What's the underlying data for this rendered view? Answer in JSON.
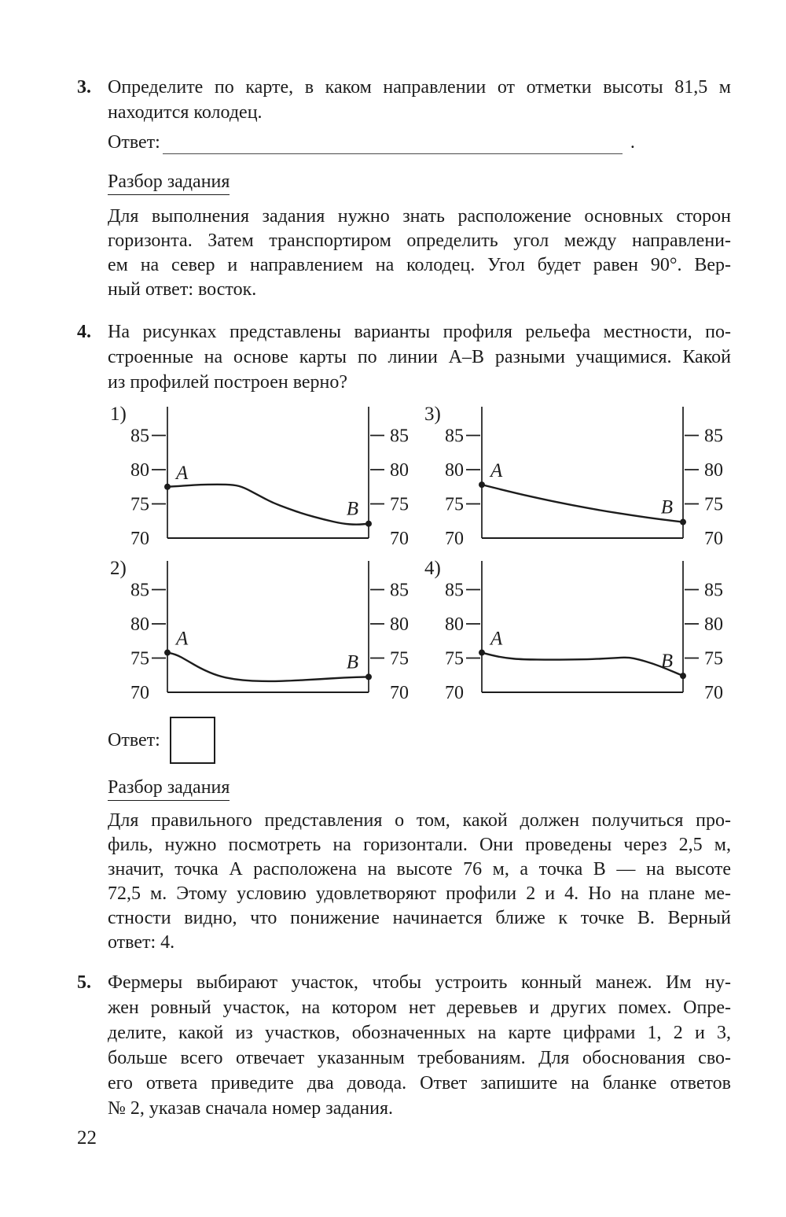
{
  "page": {
    "number": "22",
    "background": "#ffffff",
    "text_color": "#1c1c1c"
  },
  "task3": {
    "number": "3.",
    "lines": [
      "Определите по карте, в каком направлении от отметки высоты 81,5 м",
      "находится колодец."
    ],
    "answer": {
      "label": "Ответ:",
      "period": "."
    },
    "analysis": {
      "heading": "Разбор задания",
      "lines": [
        "Для выполнения задания нужно знать расположение основных сторон",
        "горизонта. Затем транспортиром определить угол между направлени-",
        "ем на север и направлением на колодец. Угол будет равен 90°. Вер-",
        "ный ответ: восток."
      ]
    }
  },
  "task4": {
    "number": "4.",
    "lines": [
      "На рисунках представлены варианты профиля рельефа местности, по-",
      "строенные на основе карты по линии А–В разными учащимися. Какой",
      "из профилей построен верно?"
    ],
    "answer": {
      "label": "Ответ:"
    },
    "analysis": {
      "heading": "Разбор задания",
      "lines": [
        "Для правильного представления о том, какой должен получиться про-",
        "филь, нужно посмотреть на горизонтали. Они проведены через 2,5 м,",
        "значит, точка А расположена на высоте 76 м, а точка В — на высоте",
        "72,5 м. Этому условию удовлетворяют профили 2 и 4. Но на плане ме-",
        "стности видно, что понижение начинается ближе к точке В. Верный",
        "ответ: 4."
      ]
    }
  },
  "task5": {
    "number": "5.",
    "lines": [
      "Фермеры выбирают участок, чтобы устроить конный манеж. Им ну-",
      "жен ровный участок, на котором нет деревьев и других помех. Опре-",
      "делите, какой из участков, обозначенных на карте цифрами 1, 2 и 3,",
      "больше всего отвечает указанным требованиям. Для обоснования сво-",
      "его ответа приведите два довода. Ответ запишите на бланке ответов",
      "№ 2, указав сначала номер задания."
    ]
  },
  "chart_data": [
    {
      "id": "profile-1",
      "label": "1)",
      "type": "line",
      "yticks": [
        85,
        80,
        75,
        70
      ],
      "ylim": [
        70,
        89.5
      ],
      "point_labels": [
        "А",
        "В"
      ],
      "endpoints": {
        "A": 77.5,
        "B": 72.1
      },
      "points": [
        [
          0,
          77.5
        ],
        [
          0.06,
          77.6
        ],
        [
          0.15,
          77.8
        ],
        [
          0.25,
          77.85
        ],
        [
          0.33,
          77.8
        ],
        [
          0.38,
          77.4
        ],
        [
          0.45,
          76.3
        ],
        [
          0.52,
          75.2
        ],
        [
          0.6,
          74.3
        ],
        [
          0.68,
          73.5
        ],
        [
          0.78,
          72.7
        ],
        [
          0.87,
          72.1
        ],
        [
          0.94,
          71.95
        ],
        [
          1,
          72.1
        ]
      ]
    },
    {
      "id": "profile-2",
      "label": "2)",
      "type": "line",
      "yticks": [
        85,
        80,
        75,
        70
      ],
      "ylim": [
        70,
        89.5
      ],
      "point_labels": [
        "А",
        "В"
      ],
      "endpoints": {
        "A": 75.8,
        "B": 72.25
      },
      "points": [
        [
          0,
          75.8
        ],
        [
          0.04,
          75.6
        ],
        [
          0.1,
          74.6
        ],
        [
          0.17,
          73.4
        ],
        [
          0.25,
          72.4
        ],
        [
          0.33,
          71.9
        ],
        [
          0.42,
          71.65
        ],
        [
          0.52,
          71.6
        ],
        [
          0.62,
          71.7
        ],
        [
          0.75,
          71.9
        ],
        [
          0.88,
          72.15
        ],
        [
          1,
          72.25
        ]
      ]
    },
    {
      "id": "profile-3",
      "label": "3)",
      "type": "line",
      "yticks": [
        85,
        80,
        75,
        70
      ],
      "ylim": [
        70,
        89.5
      ],
      "point_labels": [
        "А",
        "В"
      ],
      "endpoints": {
        "A": 77.8,
        "B": 72.35
      },
      "points": [
        [
          0,
          77.8
        ],
        [
          0.15,
          76.7
        ],
        [
          0.3,
          75.7
        ],
        [
          0.45,
          74.8
        ],
        [
          0.6,
          74.0
        ],
        [
          0.75,
          73.3
        ],
        [
          0.9,
          72.7
        ],
        [
          1,
          72.35
        ]
      ]
    },
    {
      "id": "profile-4",
      "label": "4)",
      "type": "line",
      "yticks": [
        85,
        80,
        75,
        70
      ],
      "ylim": [
        70,
        89.5
      ],
      "point_labels": [
        "А",
        "В"
      ],
      "endpoints": {
        "A": 75.8,
        "B": 72.4
      },
      "points": [
        [
          0,
          75.8
        ],
        [
          0.05,
          75.4
        ],
        [
          0.12,
          75.0
        ],
        [
          0.2,
          74.8
        ],
        [
          0.35,
          74.75
        ],
        [
          0.5,
          74.8
        ],
        [
          0.6,
          74.9
        ],
        [
          0.68,
          75.05
        ],
        [
          0.73,
          75.1
        ],
        [
          0.78,
          74.8
        ],
        [
          0.85,
          74.2
        ],
        [
          0.92,
          73.4
        ],
        [
          1,
          72.4
        ]
      ]
    }
  ]
}
